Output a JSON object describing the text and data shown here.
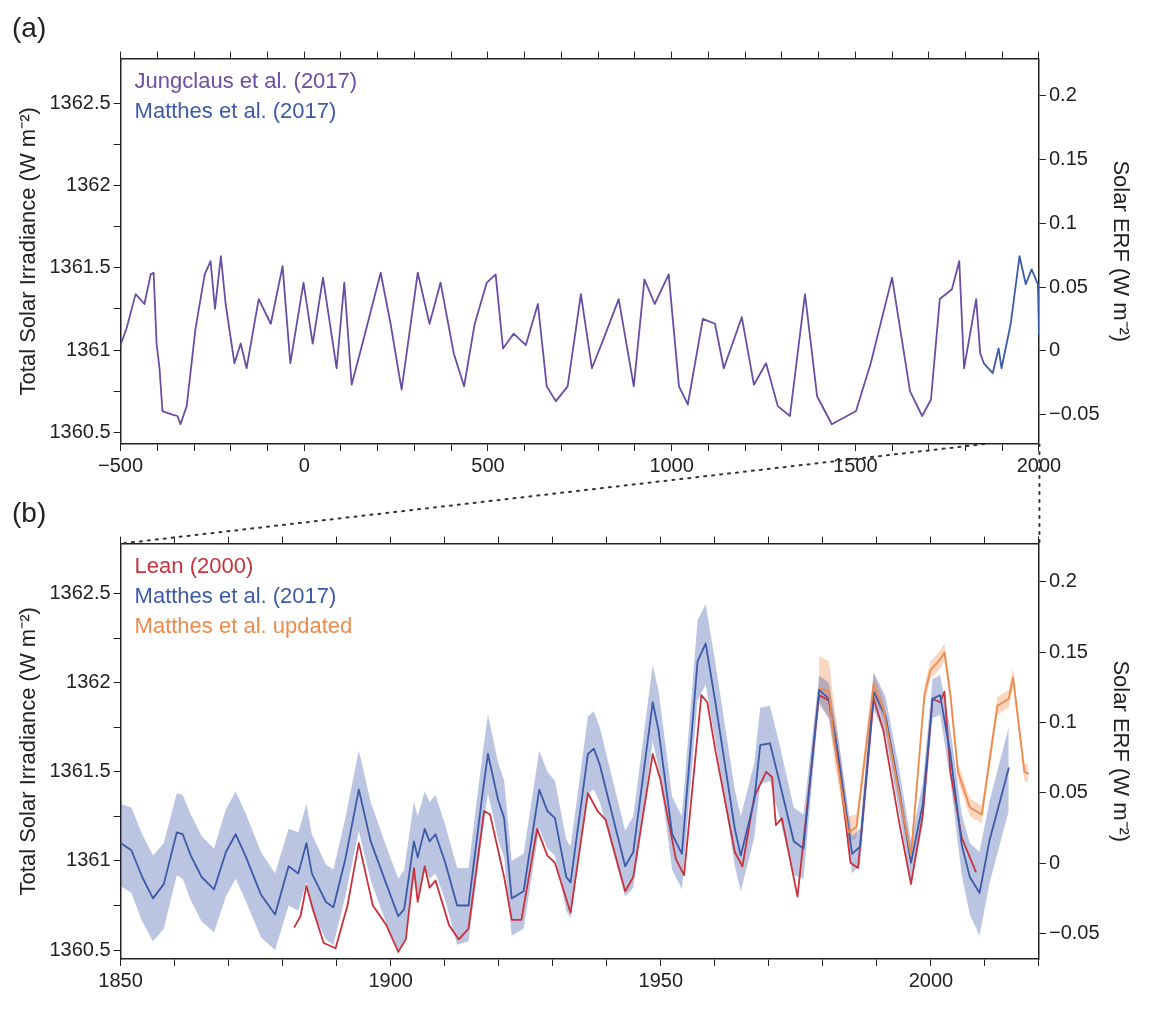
{
  "chart_data": [
    {
      "type": "line",
      "title": "(a)",
      "ylabel": "Total Solar Irradiance (W m⁻²)",
      "y2label": "Solar ERF (W m⁻²)",
      "legend": "top left",
      "marker": "none",
      "line_style": "solid",
      "xlim": [
        -500,
        2000
      ],
      "xticks": [
        {
          "value": -500,
          "label": "−500"
        },
        {
          "value": -400,
          "label": null
        },
        {
          "value": -300,
          "label": null
        },
        {
          "value": -200,
          "label": null
        },
        {
          "value": -100,
          "label": null
        },
        0,
        {
          "value": 100,
          "label": null
        },
        {
          "value": 200,
          "label": null
        },
        {
          "value": 300,
          "label": null
        },
        {
          "value": 400,
          "label": null
        },
        500,
        {
          "value": 600,
          "label": null
        },
        {
          "value": 700,
          "label": null
        },
        {
          "value": 800,
          "label": null
        },
        {
          "value": 900,
          "label": null
        },
        1000,
        {
          "value": 1100,
          "label": null
        },
        {
          "value": 1200,
          "label": null
        },
        {
          "value": 1300,
          "label": null
        },
        {
          "value": 1400,
          "label": null
        },
        1500,
        {
          "value": 1600,
          "label": null
        },
        {
          "value": 1700,
          "label": null
        },
        {
          "value": 1800,
          "label": null
        },
        {
          "value": 1900,
          "label": null
        },
        2000
      ],
      "ylim": [
        1360.43,
        1362.77
      ],
      "yticks": [
        1360.5,
        {
          "value": 1360.75,
          "label": null
        },
        1361,
        {
          "value": 1361.25,
          "label": null
        },
        1361.5,
        {
          "value": 1361.75,
          "label": null
        },
        1362,
        {
          "value": 1362.25,
          "label": null
        },
        1362.5
      ],
      "y2lim": [
        -0.073,
        0.229
      ],
      "y2ticks": [
        {
          "value": -0.05,
          "label": "−0.05"
        },
        0,
        0.05,
        0.1,
        0.15,
        0.2
      ],
      "series": [
        {
          "name": "Jungclaus et al. (2017)",
          "color": "#6a4ea3",
          "x": [
            -500,
            -484,
            -459,
            -435,
            -418,
            -410,
            -402,
            -394,
            -386,
            -361,
            -345,
            -337,
            -320,
            -296,
            -271,
            -255,
            -243,
            -227,
            -214,
            -190,
            -173,
            -157,
            -124,
            -91,
            -59,
            -38,
            -2,
            23,
            51,
            88,
            109,
            129,
            162,
            208,
            235,
            265,
            309,
            341,
            371,
            407,
            435,
            464,
            497,
            521,
            541,
            570,
            603,
            636,
            660,
            685,
            717,
            753,
            783,
            815,
            856,
            897,
            926,
            954,
            992,
            1020,
            1044,
            1085,
            1118,
            1142,
            1191,
            1224,
            1257,
            1289,
            1322,
            1363,
            1396,
            1436,
            1502,
            1542,
            1600,
            1649,
            1682,
            1706,
            1730,
            1763,
            1783,
            1796,
            1829,
            1840,
            1850
          ],
          "values": [
            1361.03,
            1361.13,
            1361.34,
            1361.28,
            1361.46,
            1361.47,
            1361.04,
            1360.89,
            1360.63,
            1360.61,
            1360.6,
            1360.55,
            1360.66,
            1361.13,
            1361.46,
            1361.54,
            1361.25,
            1361.57,
            1361.28,
            1360.92,
            1361.04,
            1360.89,
            1361.31,
            1361.16,
            1361.51,
            1360.92,
            1361.41,
            1361.04,
            1361.44,
            1360.89,
            1361.41,
            1360.79,
            1361.07,
            1361.47,
            1361.16,
            1360.76,
            1361.47,
            1361.16,
            1361.41,
            1360.98,
            1360.78,
            1361.16,
            1361.41,
            1361.46,
            1361.01,
            1361.1,
            1361.03,
            1361.28,
            1360.78,
            1360.69,
            1360.78,
            1361.34,
            1360.89,
            1361.07,
            1361.31,
            1360.78,
            1361.43,
            1361.28,
            1361.46,
            1360.78,
            1360.67,
            1361.19,
            1361.16,
            1360.89,
            1361.2,
            1360.79,
            1360.92,
            1360.66,
            1360.6,
            1361.34,
            1360.72,
            1360.55,
            1360.63,
            1360.92,
            1361.44,
            1360.75,
            1360.6,
            1360.7,
            1361.31,
            1361.37,
            1361.54,
            1360.89,
            1361.31,
            1360.98,
            1360.92
          ]
        },
        {
          "name": "Matthes et al. (2017)",
          "color": "#3c5aa8",
          "x": [
            1850,
            1874,
            1890,
            1898,
            1923,
            1947,
            1964,
            1980,
            1997,
            2000
          ],
          "values": [
            1360.92,
            1360.86,
            1361.01,
            1360.89,
            1361.16,
            1361.57,
            1361.4,
            1361.49,
            1361.4,
            1361.1
          ]
        }
      ]
    },
    {
      "type": "line",
      "title": "(b)",
      "ylabel": "Total Solar Irradiance (W m⁻²)",
      "y2label": "Solar ERF (W m⁻²)",
      "legend": "top left",
      "marker": "none",
      "line_style": "solid",
      "xlim": [
        1850,
        2020
      ],
      "xticks": [
        1850,
        {
          "value": 1860,
          "label": null
        },
        {
          "value": 1870,
          "label": null
        },
        {
          "value": 1880,
          "label": null
        },
        {
          "value": 1890,
          "label": null
        },
        1900,
        {
          "value": 1910,
          "label": null
        },
        {
          "value": 1920,
          "label": null
        },
        {
          "value": 1930,
          "label": null
        },
        {
          "value": 1940,
          "label": null
        },
        1950,
        {
          "value": 1960,
          "label": null
        },
        {
          "value": 1970,
          "label": null
        },
        {
          "value": 1980,
          "label": null
        },
        {
          "value": 1990,
          "label": null
        },
        2000,
        {
          "value": 2010,
          "label": null
        },
        {
          "value": 2020,
          "label": null
        }
      ],
      "ylim": [
        1360.45,
        1362.78
      ],
      "yticks": [
        1360.5,
        {
          "value": 1360.75,
          "label": null
        },
        1361,
        {
          "value": 1361.25,
          "label": null
        },
        1361.5,
        {
          "value": 1361.75,
          "label": null
        },
        1362,
        {
          "value": 1362.25,
          "label": null
        },
        1362.5
      ],
      "y2lim": [
        -0.068,
        0.227
      ],
      "y2ticks": [
        {
          "value": -0.05,
          "label": "−0.05"
        },
        0,
        0.05,
        0.1,
        0.15,
        0.2
      ],
      "series": [
        {
          "name": "Lean (2000)",
          "color": "#c8323c",
          "x": [
            1882.2,
            1883.3,
            1884.4,
            1885.8,
            1887.6,
            1889.8,
            1892,
            1894.1,
            1896.7,
            1899.2,
            1901.4,
            1902.8,
            1904.3,
            1905,
            1906.3,
            1907.2,
            1908.3,
            1910.8,
            1912.6,
            1914.4,
            1917.3,
            1918.4,
            1921,
            1922.4,
            1924.2,
            1927.1,
            1929,
            1930.4,
            1933.3,
            1936.5,
            1938.3,
            1939.8,
            1943.4,
            1944.9,
            1948.5,
            1949.9,
            1952.8,
            1954.3,
            1957.5,
            1958.6,
            1960.1,
            1963.7,
            1965.1,
            1967.3,
            1969.5,
            1970.6,
            1971.3,
            1972.4,
            1975.3,
            1979.3,
            1981.1,
            1982.5,
            1985.1,
            1986.5,
            1989.4,
            1991.2,
            1994.1,
            1996.3,
            1998.5,
            2000.3,
            2001.7,
            2002.5,
            2003.6,
            2005.7,
            2008.3
          ],
          "values": [
            1360.63,
            1360.69,
            1360.86,
            1360.71,
            1360.54,
            1360.51,
            1360.75,
            1361.1,
            1360.75,
            1360.64,
            1360.49,
            1360.56,
            1360.96,
            1360.77,
            1360.97,
            1360.85,
            1360.89,
            1360.64,
            1360.56,
            1360.62,
            1361.28,
            1361.26,
            1360.91,
            1360.67,
            1360.67,
            1361.18,
            1361.03,
            1360.99,
            1360.71,
            1361.38,
            1361.28,
            1361.23,
            1360.83,
            1360.91,
            1361.6,
            1361.46,
            1361.01,
            1360.92,
            1361.93,
            1361.89,
            1361.62,
            1361.05,
            1360.97,
            1361.36,
            1361.5,
            1361.47,
            1361.2,
            1361.24,
            1360.8,
            1361.93,
            1361.9,
            1361.65,
            1360.99,
            1360.96,
            1361.91,
            1361.73,
            1361.22,
            1360.87,
            1361.26,
            1361.91,
            1361.89,
            1361.95,
            1361.5,
            1361.13,
            1360.94
          ]
        },
        {
          "name": "Matthes et al. (2017)",
          "color": "#3c5aa8",
          "x": [
            1850,
            1852,
            1854,
            1856,
            1858,
            1860.4,
            1861.5,
            1863,
            1865,
            1867.3,
            1869.5,
            1871.3,
            1873.1,
            1876,
            1878.6,
            1881.1,
            1882.9,
            1884.4,
            1885.4,
            1888,
            1889.4,
            1891.6,
            1894.1,
            1896.3,
            1899.2,
            1901.4,
            1902.5,
            1904.3,
            1905,
            1906.3,
            1907.2,
            1908.3,
            1910.1,
            1912.3,
            1914.4,
            1917,
            1918,
            1919.9,
            1921,
            1922.4,
            1924.6,
            1927.5,
            1929,
            1930.4,
            1932.5,
            1933.3,
            1936.5,
            1937.6,
            1938.7,
            1943.4,
            1944.9,
            1948.5,
            1949.6,
            1952.1,
            1953.9,
            1956.8,
            1958.3,
            1960.1,
            1963.7,
            1964.8,
            1967.3,
            1968.4,
            1970.2,
            1972,
            1974.6,
            1976.4,
            1979.3,
            1981.1,
            1982.9,
            1985.4,
            1986.9,
            1989.4,
            1991.6,
            1994.1,
            1996.3,
            1998.5,
            2000.3,
            2001.7,
            2003.6,
            2005.7,
            2007.2,
            2009,
            2010.8,
            2014.4
          ],
          "values": [
            1361.1,
            1361.06,
            1360.91,
            1360.79,
            1360.87,
            1361.16,
            1361.15,
            1361.03,
            1360.91,
            1360.84,
            1361.05,
            1361.15,
            1361.03,
            1360.81,
            1360.7,
            1360.97,
            1360.93,
            1361.1,
            1360.93,
            1360.77,
            1360.74,
            1361.01,
            1361.4,
            1361.11,
            1360.87,
            1360.69,
            1360.73,
            1361.11,
            1361.02,
            1361.18,
            1361.11,
            1361.15,
            1360.99,
            1360.75,
            1360.75,
            1361.38,
            1361.6,
            1361.34,
            1361.24,
            1360.79,
            1360.83,
            1361.4,
            1361.28,
            1361.24,
            1360.91,
            1360.88,
            1361.6,
            1361.63,
            1361.54,
            1360.97,
            1361.05,
            1361.89,
            1361.73,
            1361.15,
            1361.04,
            1362.12,
            1362.22,
            1361.89,
            1361.18,
            1361.03,
            1361.34,
            1361.65,
            1361.66,
            1361.44,
            1361.11,
            1361.07,
            1361.96,
            1361.91,
            1361.58,
            1361.04,
            1361.08,
            1361.95,
            1361.81,
            1361.4,
            1360.99,
            1361.32,
            1361.91,
            1361.93,
            1361.6,
            1361.09,
            1360.91,
            1360.82,
            1361.11,
            1361.52
          ],
          "lower": [
            1360.86,
            1360.82,
            1360.66,
            1360.55,
            1360.62,
            1360.92,
            1360.9,
            1360.78,
            1360.66,
            1360.6,
            1360.8,
            1360.9,
            1360.78,
            1360.57,
            1360.5,
            1360.75,
            1360.72,
            1360.88,
            1360.72,
            1360.56,
            1360.53,
            1360.8,
            1361.17,
            1360.89,
            1360.65,
            1360.5,
            1360.53,
            1360.9,
            1360.8,
            1360.96,
            1360.9,
            1360.93,
            1360.78,
            1360.53,
            1360.55,
            1361.16,
            1361.38,
            1361.12,
            1361.02,
            1360.58,
            1360.62,
            1361.18,
            1361.07,
            1361.03,
            1360.72,
            1360.68,
            1361.38,
            1361.4,
            1361.33,
            1360.8,
            1360.85,
            1361.67,
            1361.52,
            1360.95,
            1360.84,
            1361.9,
            1361.99,
            1361.67,
            1360.97,
            1360.83,
            1361.13,
            1361.43,
            1361.45,
            1361.24,
            1360.92,
            1360.9,
            1361.88,
            1361.8,
            1361.48,
            1360.93,
            1360.98,
            1361.85,
            1361.7,
            1361.28,
            1360.87,
            1361.2,
            1361.8,
            1361.82,
            1361.45,
            1360.92,
            1360.7,
            1360.58,
            1360.87,
            1361.28
          ],
          "upper": [
            1361.32,
            1361.3,
            1361.15,
            1361.03,
            1361.1,
            1361.38,
            1361.37,
            1361.26,
            1361.14,
            1361.07,
            1361.29,
            1361.39,
            1361.27,
            1361.05,
            1360.93,
            1361.18,
            1361.16,
            1361.32,
            1361.15,
            1360.98,
            1360.95,
            1361.24,
            1361.62,
            1361.33,
            1361.08,
            1360.9,
            1360.95,
            1361.33,
            1361.25,
            1361.39,
            1361.33,
            1361.37,
            1361.2,
            1360.96,
            1360.96,
            1361.6,
            1361.82,
            1361.55,
            1361.45,
            1361,
            1361.04,
            1361.62,
            1361.5,
            1361.45,
            1361.12,
            1361.08,
            1361.81,
            1361.84,
            1361.75,
            1361.17,
            1361.25,
            1362.1,
            1361.95,
            1361.36,
            1361.25,
            1362.35,
            1362.44,
            1362.11,
            1361.4,
            1361.25,
            1361.55,
            1361.86,
            1361.87,
            1361.65,
            1361.3,
            1361.26,
            1362.04,
            1362,
            1361.68,
            1361.14,
            1361.18,
            1362.06,
            1361.92,
            1361.52,
            1361.11,
            1361.44,
            1362.02,
            1362.04,
            1361.74,
            1361.26,
            1361.1,
            1361.05,
            1361.33,
            1361.75
          ]
        },
        {
          "name": "Matthes et al. updated",
          "color": "#f08a4b",
          "x": [
            1979.3,
            1981.1,
            1982.2,
            1984.7,
            1986.2,
            1989.4,
            1991.2,
            1994.1,
            1996.3,
            1998.8,
            1999.9,
            2001.7,
            2002.5,
            2003.6,
            2005,
            2007.2,
            2009.4,
            2012.3,
            2014.4,
            2015.2,
            2017.3,
            2018
          ],
          "values": [
            1361.97,
            1361.95,
            1361.65,
            1361.16,
            1361.19,
            1361.99,
            1361.85,
            1361.38,
            1361.03,
            1361.93,
            1362.07,
            1362.13,
            1362.17,
            1361.93,
            1361.5,
            1361.3,
            1361.26,
            1361.87,
            1361.91,
            1362.03,
            1361.5,
            1361.49
          ],
          "lower": [
            1361.9,
            1361.8,
            1361.55,
            1361.1,
            1361.13,
            1361.93,
            1361.79,
            1361.33,
            1360.98,
            1361.88,
            1362.02,
            1362.08,
            1362.12,
            1361.88,
            1361.45,
            1361.25,
            1361.21,
            1361.82,
            1361.86,
            1361.98,
            1361.45,
            1361.44
          ],
          "upper": [
            1362.15,
            1362.12,
            1361.85,
            1361.25,
            1361.26,
            1362.05,
            1361.91,
            1361.43,
            1361.08,
            1361.98,
            1362.12,
            1362.18,
            1362.22,
            1361.98,
            1361.55,
            1361.35,
            1361.31,
            1361.92,
            1361.96,
            1362.08,
            1361.55,
            1361.54
          ]
        }
      ]
    }
  ]
}
